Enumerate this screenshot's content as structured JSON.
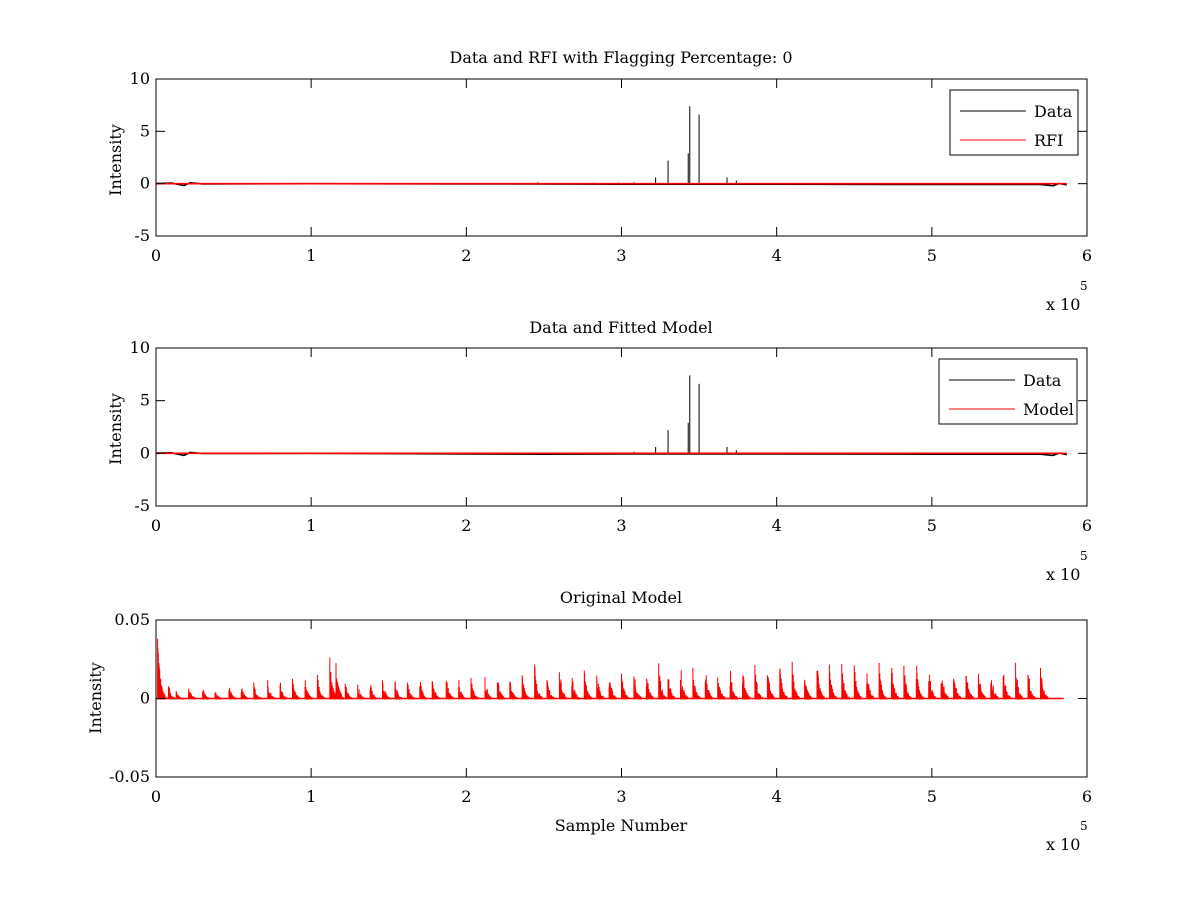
{
  "figure": {
    "background": "#ffffff"
  },
  "chart_data": [
    {
      "type": "line",
      "title": "Data and RFI with Flagging Percentage: 0",
      "xlabel": "",
      "ylabel": "Intensity",
      "xlim": [
        0,
        6
      ],
      "ylim": [
        -5,
        10
      ],
      "xticks": [
        "0",
        "1",
        "2",
        "3",
        "4",
        "5",
        "6"
      ],
      "yticks": [
        "-5",
        "0",
        "5",
        "10"
      ],
      "x_exponent_label": "x 10",
      "x_exponent_power": "5",
      "legend": {
        "position": "top-right",
        "entries": [
          "Data",
          "RFI"
        ]
      },
      "grid": false,
      "series": [
        {
          "name": "Data",
          "color": "#000000",
          "baseline": [
            [
              0.0,
              0.02
            ],
            [
              0.1,
              0.05
            ],
            [
              0.18,
              -0.18
            ],
            [
              0.22,
              0.08
            ],
            [
              0.3,
              -0.02
            ],
            [
              1.0,
              0.0
            ],
            [
              2.0,
              -0.02
            ],
            [
              3.0,
              -0.05
            ],
            [
              4.0,
              -0.05
            ],
            [
              5.0,
              -0.08
            ],
            [
              5.7,
              -0.08
            ],
            [
              5.78,
              -0.2
            ],
            [
              5.82,
              0.02
            ],
            [
              5.87,
              -0.12
            ]
          ],
          "spikes": [
            [
              3.22,
              0.6
            ],
            [
              3.3,
              2.2
            ],
            [
              3.43,
              2.9
            ],
            [
              3.44,
              7.4
            ],
            [
              3.5,
              6.6
            ],
            [
              3.68,
              0.6
            ],
            [
              3.74,
              0.3
            ],
            [
              3.08,
              0.15
            ],
            [
              2.98,
              0.1
            ],
            [
              2.82,
              0.1
            ]
          ]
        },
        {
          "name": "RFI",
          "color": "#ff0000",
          "baseline": [
            [
              0.0,
              0.0
            ],
            [
              5.87,
              0.0
            ]
          ],
          "spikes": [
            [
              2.46,
              0.15
            ]
          ]
        }
      ]
    },
    {
      "type": "line",
      "title": "Data and Fitted Model",
      "xlabel": "",
      "ylabel": "Intensity",
      "xlim": [
        0,
        6
      ],
      "ylim": [
        -5,
        10
      ],
      "xticks": [
        "0",
        "1",
        "2",
        "3",
        "4",
        "5",
        "6"
      ],
      "yticks": [
        "-5",
        "0",
        "5",
        "10"
      ],
      "x_exponent_label": "x 10",
      "x_exponent_power": "5",
      "legend": {
        "position": "top-right",
        "entries": [
          "Data",
          "Model"
        ]
      },
      "grid": false,
      "series": [
        {
          "name": "Data",
          "color": "#000000",
          "baseline": [
            [
              0.0,
              0.02
            ],
            [
              0.1,
              0.05
            ],
            [
              0.18,
              -0.2
            ],
            [
              0.22,
              0.08
            ],
            [
              0.3,
              -0.02
            ],
            [
              1.0,
              0.0
            ],
            [
              2.0,
              -0.05
            ],
            [
              2.5,
              -0.08
            ],
            [
              3.0,
              -0.05
            ],
            [
              4.0,
              -0.05
            ],
            [
              5.0,
              -0.08
            ],
            [
              5.7,
              -0.08
            ],
            [
              5.78,
              -0.2
            ],
            [
              5.82,
              0.02
            ],
            [
              5.87,
              -0.12
            ]
          ],
          "spikes": [
            [
              3.22,
              0.6
            ],
            [
              3.3,
              2.2
            ],
            [
              3.43,
              2.9
            ],
            [
              3.44,
              7.4
            ],
            [
              3.5,
              6.6
            ],
            [
              3.68,
              0.6
            ],
            [
              3.74,
              0.3
            ],
            [
              3.08,
              0.15
            ],
            [
              2.98,
              0.1
            ]
          ]
        },
        {
          "name": "Model",
          "color": "#ff0000",
          "baseline": [
            [
              0.0,
              0.0
            ],
            [
              5.87,
              0.0
            ]
          ],
          "spikes": []
        }
      ]
    },
    {
      "type": "line",
      "title": "Original Model",
      "xlabel": "Sample Number",
      "ylabel": "Intensity",
      "xlim": [
        0,
        6
      ],
      "ylim": [
        -0.05,
        0.05
      ],
      "xticks": [
        "0",
        "1",
        "2",
        "3",
        "4",
        "5",
        "6"
      ],
      "yticks": [
        "-0.05",
        "0",
        "0.05"
      ],
      "x_exponent_label": "x 10",
      "x_exponent_power": "5",
      "legend": null,
      "grid": false,
      "series": [
        {
          "name": "",
          "color": "#ff0000",
          "range": [
            0.0,
            5.85
          ],
          "bursts": [
            [
              0.01,
              0.049
            ],
            [
              0.02,
              0.014
            ],
            [
              0.08,
              0.01
            ],
            [
              0.13,
              0.006
            ],
            [
              0.21,
              0.01
            ],
            [
              0.3,
              0.009
            ],
            [
              0.38,
              0.007
            ],
            [
              0.47,
              0.01
            ],
            [
              0.55,
              0.011
            ],
            [
              0.63,
              0.011
            ],
            [
              0.72,
              0.012
            ],
            [
              0.8,
              0.012
            ],
            [
              0.88,
              0.014
            ],
            [
              0.96,
              0.014
            ],
            [
              1.04,
              0.016
            ],
            [
              1.12,
              0.028
            ],
            [
              1.16,
              0.032
            ],
            [
              1.22,
              0.012
            ],
            [
              1.3,
              0.011
            ],
            [
              1.38,
              0.012
            ],
            [
              1.46,
              0.014
            ],
            [
              1.54,
              0.013
            ],
            [
              1.62,
              0.013
            ],
            [
              1.7,
              0.015
            ],
            [
              1.78,
              0.015
            ],
            [
              1.87,
              0.016
            ],
            [
              1.95,
              0.014
            ],
            [
              2.03,
              0.015
            ],
            [
              2.12,
              0.016
            ],
            [
              2.2,
              0.017
            ],
            [
              2.28,
              0.016
            ],
            [
              2.36,
              0.017
            ],
            [
              2.44,
              0.023
            ],
            [
              2.52,
              0.017
            ],
            [
              2.6,
              0.022
            ],
            [
              2.68,
              0.018
            ],
            [
              2.76,
              0.021
            ],
            [
              2.84,
              0.022
            ],
            [
              2.92,
              0.019
            ],
            [
              3.0,
              0.02
            ],
            [
              3.08,
              0.021
            ],
            [
              3.16,
              0.021
            ],
            [
              3.24,
              0.024
            ],
            [
              3.3,
              0.018
            ],
            [
              3.38,
              0.024
            ],
            [
              3.46,
              0.022
            ],
            [
              3.54,
              0.023
            ],
            [
              3.62,
              0.022
            ],
            [
              3.7,
              0.021
            ],
            [
              3.78,
              0.024
            ],
            [
              3.86,
              0.023
            ],
            [
              3.94,
              0.023
            ],
            [
              4.02,
              0.024
            ],
            [
              4.1,
              0.024
            ],
            [
              4.18,
              0.023
            ],
            [
              4.26,
              0.024
            ],
            [
              4.34,
              0.022
            ],
            [
              4.42,
              0.024
            ],
            [
              4.5,
              0.023
            ],
            [
              4.58,
              0.023
            ],
            [
              4.66,
              0.024
            ],
            [
              4.74,
              0.023
            ],
            [
              4.82,
              0.023
            ],
            [
              4.9,
              0.024
            ],
            [
              4.98,
              0.023
            ],
            [
              5.06,
              0.024
            ],
            [
              5.14,
              0.023
            ],
            [
              5.22,
              0.024
            ],
            [
              5.3,
              0.023
            ],
            [
              5.38,
              0.024
            ],
            [
              5.46,
              0.023
            ],
            [
              5.54,
              0.025
            ],
            [
              5.62,
              0.023
            ],
            [
              5.7,
              0.025
            ]
          ]
        }
      ]
    }
  ]
}
